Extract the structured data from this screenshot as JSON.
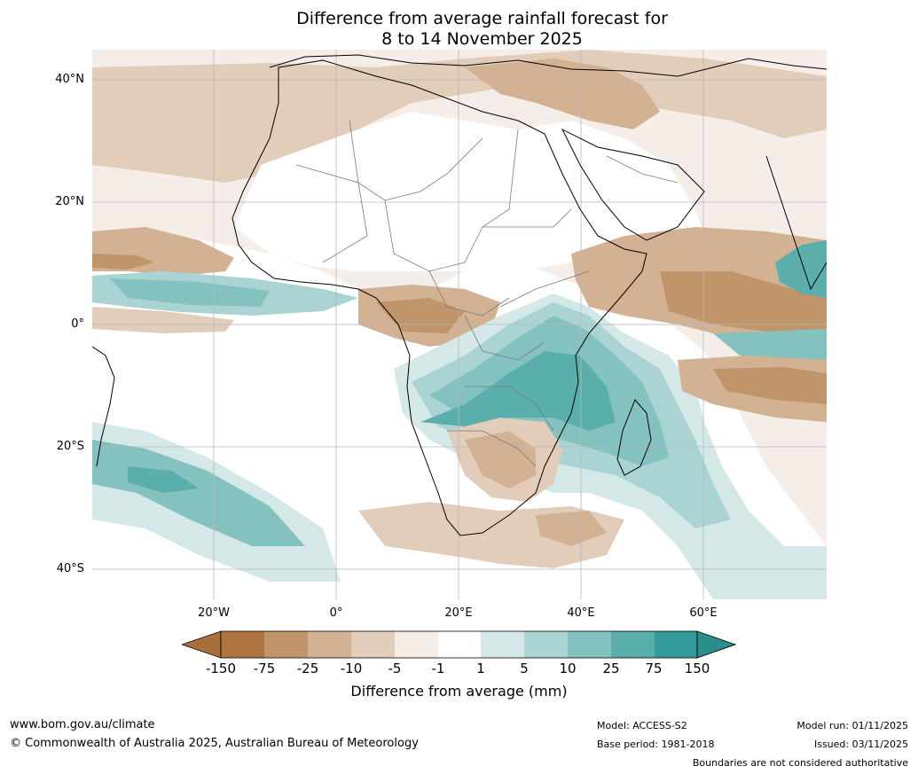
{
  "title": {
    "line1": "Difference from average rainfall forecast for",
    "line2": "8 to 14 November 2025"
  },
  "axes": {
    "lat_labels": [
      "40°N",
      "20°N",
      "0°",
      "20°S",
      "40°S"
    ],
    "lon_labels": [
      "20°W",
      "0°",
      "20°E",
      "40°E",
      "60°E"
    ]
  },
  "colorbar": {
    "ticks": [
      "-150",
      "-75",
      "-25",
      "-10",
      "-5",
      "-1",
      "1",
      "5",
      "10",
      "25",
      "75",
      "150"
    ],
    "label": "Difference from average (mm)",
    "colors": {
      "below_min": "#a86f3a",
      "c1": "#ad7442",
      "c2": "#c1956a",
      "c3": "#d2b292",
      "c4": "#e1cdb9",
      "c5": "#f4ede8",
      "c6": "#ffffff",
      "c7": "#d3e8e7",
      "c8": "#a9d4d3",
      "c9": "#84c2c0",
      "c10": "#5aaeac",
      "c11": "#339c99",
      "above_max": "#2a8f8c"
    }
  },
  "footer": {
    "website": "www.bom.gov.au/climate",
    "copyright": "© Commonwealth of Australia 2025, Australian Bureau of Meteorology",
    "model": "Model: ACCESS-S2",
    "base_period": "Base period: 1981-2018",
    "model_run": "Model run: 01/11/2025",
    "issued": "Issued: 03/11/2025",
    "disclaimer": "Boundaries are not considered authoritative"
  }
}
